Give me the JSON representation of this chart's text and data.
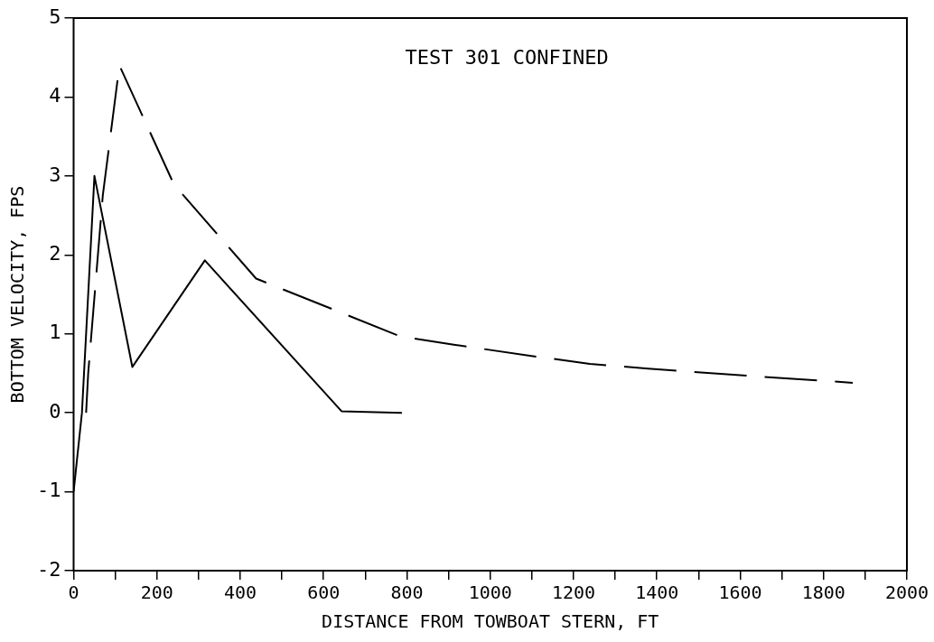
{
  "chart_data": {
    "type": "line",
    "xlabel": "DISTANCE FROM TOWBOAT STERN, FT",
    "ylabel": "BOTTOM VELOCITY, FPS",
    "annotations": [
      "TEST 301 CONFINED"
    ],
    "xlim": [
      0,
      2000
    ],
    "ylim": [
      -2,
      5
    ],
    "xticks": [
      0,
      {
        "value": 100,
        "label": null
      },
      200,
      {
        "value": 300,
        "label": null
      },
      400,
      {
        "value": 500,
        "label": null
      },
      600,
      {
        "value": 700,
        "label": null
      },
      800,
      {
        "value": 900,
        "label": null
      },
      1000,
      {
        "value": 1100,
        "label": null
      },
      1200,
      {
        "value": 1300,
        "label": null
      },
      1400,
      {
        "value": 1500,
        "label": null
      },
      1600,
      {
        "value": 1700,
        "label": null
      },
      1800,
      {
        "value": 1900,
        "label": null
      },
      2000
    ],
    "yticks": [
      -2,
      -1,
      0,
      1,
      2,
      3,
      4,
      5
    ],
    "grid": false,
    "legend": false,
    "marker": "none",
    "series": [
      {
        "color": "#000000",
        "line_style": "solid",
        "x": [
          0,
          20,
          50,
          141,
          315,
          643,
          788
        ],
        "values": [
          -1.0,
          0,
          3.0,
          0.58,
          1.93,
          0.02,
          0.0
        ]
      },
      {
        "color": "#000000",
        "line_style": "dashed",
        "x": [
          30,
          35,
          70,
          110,
          241,
          438,
          783,
          916,
          1099,
          1239,
          1379,
          1615,
          1870
        ],
        "values": [
          0.0,
          0.5,
          2.75,
          4.4,
          2.89,
          1.7,
          0.97,
          0.86,
          0.72,
          0.62,
          0.56,
          0.47,
          0.38
        ]
      }
    ]
  }
}
